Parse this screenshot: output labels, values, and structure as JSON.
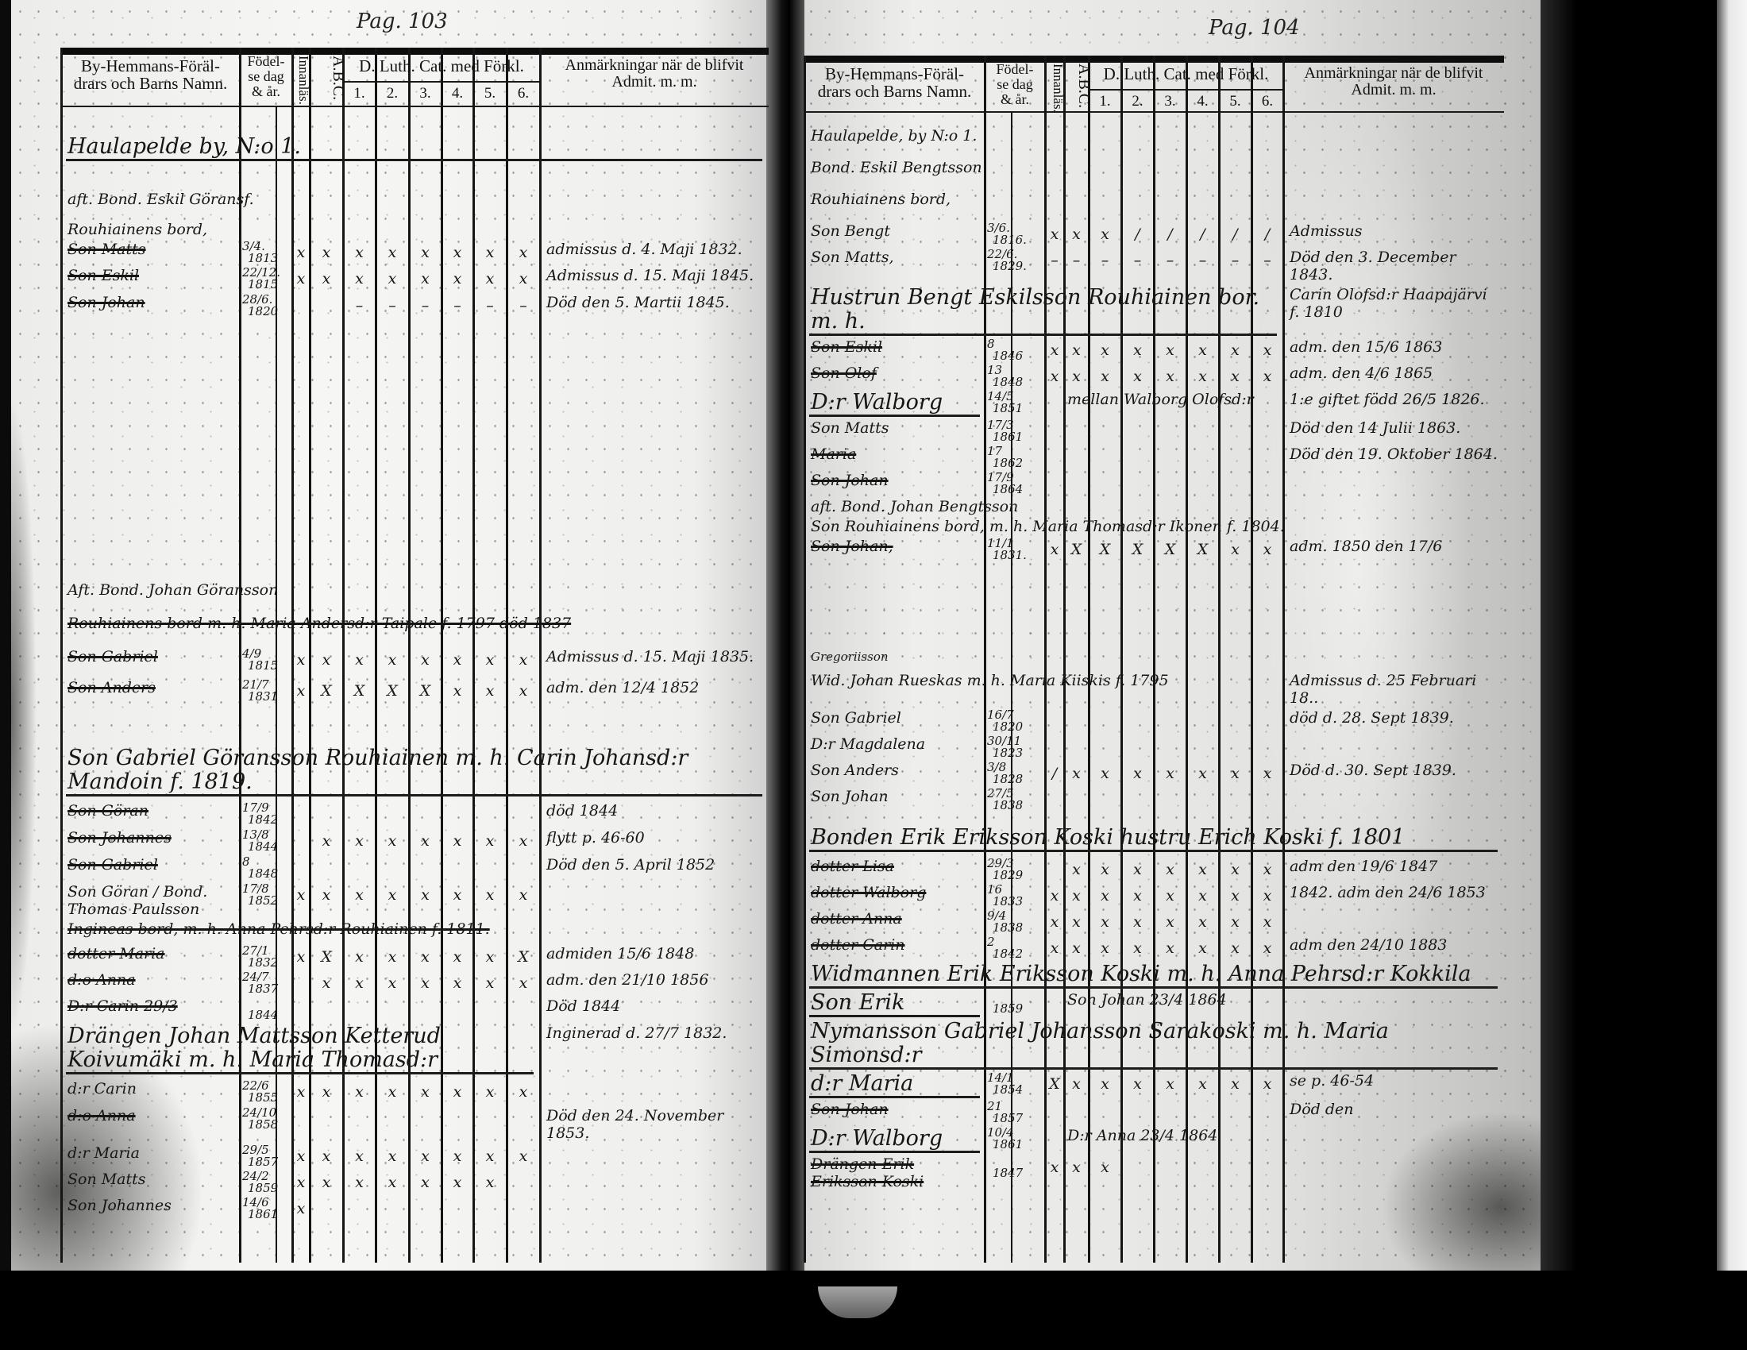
{
  "document": {
    "type": "parish catechetical register (husförhörslängd), two-page spread"
  },
  "colors": {
    "paper": "#f3f3f1",
    "ink": "#161616",
    "shadow": "#000000"
  },
  "header": {
    "name_col": [
      "By-Hemmans-Föräl-",
      "drars och Barns Namn."
    ],
    "birth_col": [
      "Födel-",
      "se dag",
      "& år."
    ],
    "reading_col": "Innanläs.",
    "abc_col": "A.B.C.",
    "catechism_group": "D. Luth. Cat. med Förkl.",
    "catechism_cols": [
      "1.",
      "2.",
      "3.",
      "4.",
      "5.",
      "6."
    ],
    "remarks_col": [
      "Anmärkningar när de blifvit",
      "Admit. m. m."
    ]
  },
  "left_page": {
    "page_number": "Pag. 103",
    "entries": [
      {
        "name": "Haulapelde by, N:o 1.",
        "big": true
      },
      {
        "name": "aft. Bond. Eskil Göransf."
      },
      {
        "name": "Rouhiainens bord,"
      },
      {
        "name": "Son Matts",
        "struck": true,
        "day": "3/4.",
        "year": "1813",
        "marks": [
          "x",
          "x",
          "x",
          "x",
          "x",
          "x",
          "x",
          "x"
        ],
        "remark": "admissus d. 4. Maji 1832."
      },
      {
        "name": "Son Eskil",
        "struck": true,
        "day": "22/12.",
        "year": "1815",
        "marks": [
          "x",
          "x",
          "x",
          "x",
          "x",
          "x",
          "x",
          "x"
        ],
        "remark": "Admissus d. 15. Maji 1845."
      },
      {
        "name": "Son Johan",
        "struck": true,
        "day": "28/6.",
        "year": "1820",
        "marks": [
          "",
          "",
          "–",
          "–",
          "–",
          "–",
          "–",
          "–"
        ],
        "remark": "Död den 5. Martii 1845."
      },
      {
        "name": "Aft. Bond. Johan Göransson"
      },
      {
        "name": "Rouhiainens bord m. h. Maria Andersd:r Taipale f. 1797 död 1837",
        "struck": true
      },
      {
        "name": "Son Gabriel",
        "struck": true,
        "day": "4/9",
        "year": "1815",
        "marks": [
          "x",
          "x",
          "x",
          "x",
          "x",
          "x",
          "x",
          "x"
        ],
        "remark": "Admissus d. 15. Maji 1835."
      },
      {
        "name": "Son Anders",
        "struck": true,
        "day": "21/7",
        "year": "1831",
        "marks": [
          "x",
          "X",
          "X",
          "X",
          "X",
          "x",
          "x",
          "x"
        ],
        "remark": "adm. den 12/4 1852"
      },
      {
        "name": "Son Gabriel Göransson Rouhiainen m. h. Carin Johansd:r Mandoin f. 1819.",
        "big": true
      },
      {
        "name": "Son Göran",
        "struck": true,
        "day": "17/9",
        "year": "1842",
        "remark": "död 1844"
      },
      {
        "name": "Son Johannes",
        "struck": true,
        "day": "13/8",
        "year": "1844",
        "marks": [
          "",
          "x",
          "x",
          "x",
          "x",
          "x",
          "x",
          "x"
        ],
        "remark": "flytt p. 46-60"
      },
      {
        "name": "Son Gabriel",
        "struck": true,
        "day": "8",
        "year": "1848",
        "remark": "Död den 5. April 1852"
      },
      {
        "name": "Son Göran / Bond. Thomas Paulsson",
        "day": "17/8",
        "year": "1852",
        "marks": [
          "x",
          "x",
          "x",
          "x",
          "x",
          "x",
          "x",
          "x"
        ]
      },
      {
        "name": "Ingineas bord, m. h. Anna Pehrsd:r Rouhiainen f. 1811.",
        "struck": true
      },
      {
        "name": "dotter Maria",
        "struck": true,
        "day": "27/1",
        "year": "1832",
        "marks": [
          "x",
          "X",
          "x",
          "x",
          "x",
          "x",
          "x",
          "X"
        ],
        "remark": "admiden 15/6 1848"
      },
      {
        "name": "d:o Anna",
        "struck": true,
        "day": "24/7",
        "year": "1837",
        "marks": [
          "",
          "x",
          "x",
          "x",
          "x",
          "x",
          "x",
          "x"
        ],
        "remark": "adm. den 21/10 1856"
      },
      {
        "name": "D:r Carin 29/3",
        "struck": true,
        "year": "1844",
        "remark": "Död 1844"
      },
      {
        "name": "Drängen Johan Mattsson Ketterud Koivumäki m. h. Maria Thomasd:r",
        "big": true,
        "remark": "Inginerad d. 27/7 1832."
      },
      {
        "name": "d:r Carin",
        "day": "22/6",
        "year": "1855",
        "marks": [
          "x",
          "x",
          "x",
          "x",
          "x",
          "x",
          "x",
          "x"
        ]
      },
      {
        "name": "d:o Anna",
        "struck": true,
        "day": "24/10",
        "year": "1858",
        "remark": "Död den 24. November 1853."
      },
      {
        "name": "d:r Maria",
        "day": "29/5",
        "year": "1857",
        "marks": [
          "x",
          "x",
          "x",
          "x",
          "x",
          "x",
          "x",
          "x"
        ]
      },
      {
        "name": "Son Matts",
        "day": "24/2",
        "year": "1859",
        "marks": [
          "x",
          "x",
          "x",
          "x",
          "x",
          "x",
          "x",
          ""
        ]
      },
      {
        "name": "Son Johannes",
        "day": "14/6",
        "year": "1861",
        "marks": [
          "x",
          "",
          "",
          "",
          "",
          "",
          "",
          ""
        ]
      }
    ]
  },
  "right_page": {
    "page_number": "Pag. 104",
    "entries": [
      {
        "name": "Haulapelde, by N:o 1."
      },
      {
        "name": "Bond. Eskil Bengtsson"
      },
      {
        "name": "Rouhiainens bord,"
      },
      {
        "name": "Son Bengt",
        "day": "3/6.",
        "year": "1816.",
        "marks": [
          "x",
          "x",
          "x",
          "/",
          "/",
          "/",
          "/",
          "/"
        ],
        "remark": "Admissus"
      },
      {
        "name": "Son Matts,",
        "day": "22/6.",
        "year": "1829.",
        "marks": [
          "–",
          "–",
          "–",
          "–",
          "–",
          "–",
          "–",
          "–"
        ],
        "remark": "Död den 3. December 1843."
      },
      {
        "name": "Hustrun Bengt Eskilsson Rouhiainen bor. m. h.",
        "big": true,
        "remark": "Carin Olofsd:r Haapajärvi f. 1810"
      },
      {
        "name": "Son Eskil",
        "struck": true,
        "day": "8",
        "year": "1846",
        "marks": [
          "x",
          "x",
          "x",
          "x",
          "x",
          "x",
          "x",
          "x"
        ],
        "remark": "adm. den 15/6 1863"
      },
      {
        "name": "Son Olof",
        "struck": true,
        "day": "13",
        "year": "1848",
        "marks": [
          "x",
          "x",
          "x",
          "x",
          "x",
          "x",
          "x",
          "x"
        ],
        "remark": "adm. den 4/6 1865"
      },
      {
        "name": "D:r Walborg",
        "big": true,
        "day": "14/5",
        "year": "1851",
        "across": "mellan Walborg Olofsd:r",
        "remark": "1:e giftet född 26/5 1826."
      },
      {
        "name": "Son Matts",
        "day": "17/3",
        "year": "1861",
        "remark": "Död den 14 Julii 1863."
      },
      {
        "name": "Maria",
        "struck": true,
        "day": "17",
        "year": "1862",
        "remark": "Död den 19. Oktober 1864."
      },
      {
        "name": "Son Johan",
        "struck": true,
        "day": "17/9",
        "year": "1864"
      },
      {
        "name": "aft. Bond. Johan Bengtsson"
      },
      {
        "name": "Son Rouhiainens bord, m. h. Maria Thomasd:r Ikonen f. 1804."
      },
      {
        "name": "Son Johan,",
        "struck": true,
        "day": "11/1",
        "year": "1831.",
        "marks": [
          "x",
          "X",
          "X",
          "X",
          "X",
          "X",
          "x",
          "x"
        ],
        "remark": "adm. 1850 den 17/6"
      },
      {
        "name": "Gregoriisson",
        "small": true
      },
      {
        "name": "Wid. Johan Rueskas m. h. Maria Kiiskis f. 1795",
        "remark": "Admissus d. 25 Februari 18.."
      },
      {
        "name": "Son Gabriel",
        "day": "16/7",
        "year": "1820",
        "remark": "död d. 28. Sept 1839."
      },
      {
        "name": "D:r Magdalena",
        "day": "30/11",
        "year": "1823"
      },
      {
        "name": "Son Anders",
        "day": "3/8",
        "year": "1828",
        "marks": [
          "/",
          "x",
          "x",
          "x",
          "x",
          "x",
          "x",
          "x"
        ],
        "remark": "Död d. 30. Sept 1839."
      },
      {
        "name": "Son Johan",
        "day": "27/5",
        "year": "1838"
      },
      {
        "name": "Bonden Erik Eriksson Koski hustru Erich Koski f. 1801",
        "big": true
      },
      {
        "name": "dotter Lisa",
        "struck": true,
        "day": "29/3",
        "year": "1829",
        "marks": [
          "",
          "x",
          "x",
          "x",
          "x",
          "x",
          "x",
          "x"
        ],
        "remark": "adm den 19/6 1847"
      },
      {
        "name": "dotter Walborg",
        "struck": true,
        "day": "16",
        "year": "1833",
        "marks": [
          "x",
          "x",
          "x",
          "x",
          "x",
          "x",
          "x",
          "x"
        ],
        "remark": "1842. adm den 24/6 1853"
      },
      {
        "name": "dotter Anna",
        "struck": true,
        "day": "9/4",
        "year": "1838",
        "marks": [
          "x",
          "x",
          "x",
          "x",
          "x",
          "x",
          "x",
          "x"
        ]
      },
      {
        "name": "dotter Carin",
        "struck": true,
        "day": "2",
        "year": "1842",
        "marks": [
          "x",
          "x",
          "x",
          "x",
          "x",
          "x",
          "x",
          "x"
        ],
        "remark": "adm den 24/10 1883"
      },
      {
        "name": "Widmannen Erik Eriksson Koski m. h. Anna Pehrsd:r Kokkila",
        "big": true
      },
      {
        "name": "Son Erik",
        "big": true,
        "year": "1859",
        "across": "Son Johan 23/4 1864"
      },
      {
        "name": "Nymansson Gabriel Johansson Sarakoski m. h. Maria Simonsd:r",
        "big": true
      },
      {
        "name": "d:r Maria",
        "big": true,
        "day": "14/1",
        "year": "1854",
        "marks": [
          "X",
          "x",
          "x",
          "x",
          "x",
          "x",
          "x",
          "x"
        ],
        "remark": "se p. 46-54"
      },
      {
        "name": "Son Johan",
        "struck": true,
        "day": "21",
        "year": "1857",
        "remark": "Död den"
      },
      {
        "name": "D:r Walborg",
        "big": true,
        "day": "10/4",
        "year": "1861",
        "across": "D:r Anna 23/4 1864"
      },
      {
        "name": "Drängen Erik Eriksson Koski",
        "struck": true,
        "year": "1847",
        "marks": [
          "x",
          "x",
          "x",
          "",
          "",
          "",
          "",
          ""
        ]
      }
    ]
  }
}
